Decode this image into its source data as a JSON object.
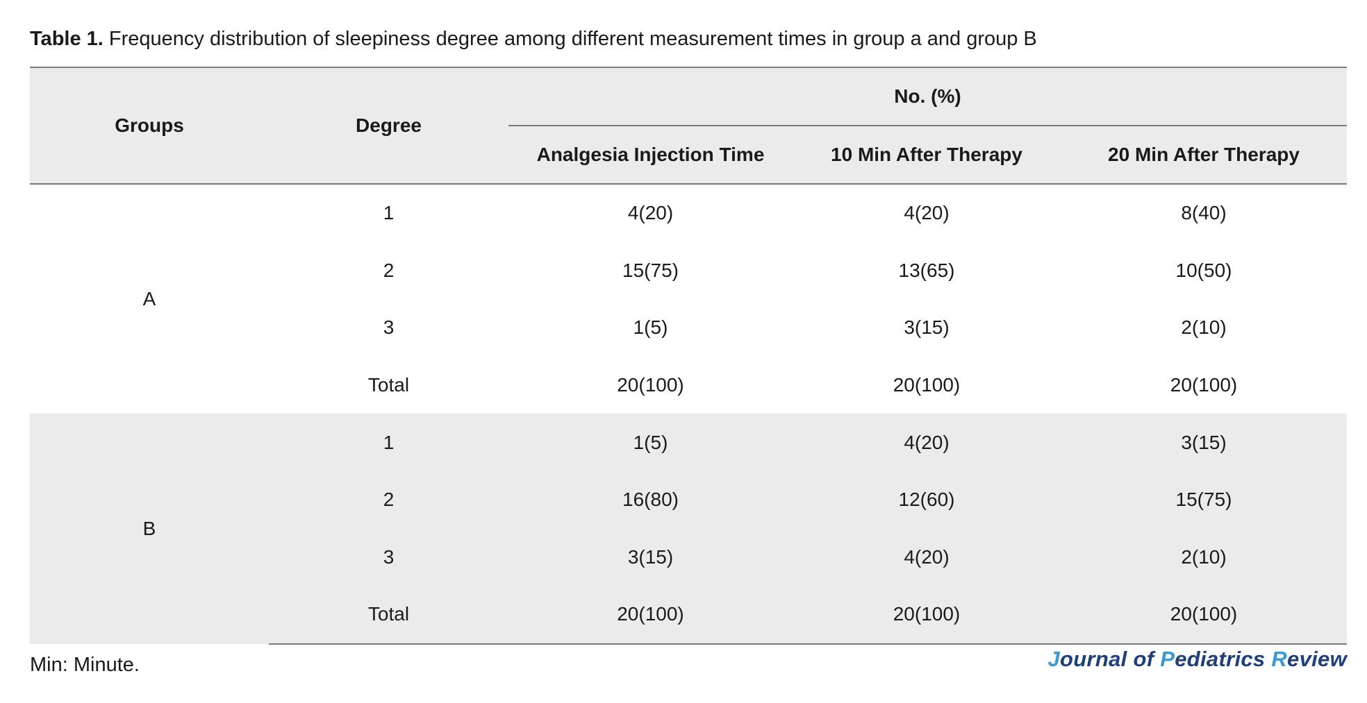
{
  "caption": {
    "label": "Table 1.",
    "text": "Frequency distribution of sleepiness degree among different measurement times in group a and group B"
  },
  "header": {
    "groups": "Groups",
    "degree": "Degree",
    "span": "No. (%)",
    "columns": [
      "Analgesia Injection Time",
      "10 Min After Therapy",
      "20 Min After Therapy"
    ]
  },
  "groups": [
    {
      "name": "A",
      "rows": [
        {
          "degree": "1",
          "values": [
            "4(20)",
            "4(20)",
            "8(40)"
          ]
        },
        {
          "degree": "2",
          "values": [
            "15(75)",
            "13(65)",
            "10(50)"
          ]
        },
        {
          "degree": "3",
          "values": [
            "1(5)",
            "3(15)",
            "2(10)"
          ]
        },
        {
          "degree": "Total",
          "values": [
            "20(100)",
            "20(100)",
            "20(100)"
          ]
        }
      ]
    },
    {
      "name": "B",
      "rows": [
        {
          "degree": "1",
          "values": [
            "1(5)",
            "4(20)",
            "3(15)"
          ]
        },
        {
          "degree": "2",
          "values": [
            "16(80)",
            "12(60)",
            "15(75)"
          ]
        },
        {
          "degree": "3",
          "values": [
            "3(15)",
            "4(20)",
            "2(10)"
          ]
        },
        {
          "degree": "Total",
          "values": [
            "20(100)",
            "20(100)",
            "20(100)"
          ]
        }
      ]
    }
  ],
  "footnote": "Min: Minute.",
  "journal": {
    "parts": [
      {
        "text": "J",
        "accent": true
      },
      {
        "text": "ournal of ",
        "accent": false
      },
      {
        "text": "P",
        "accent": true
      },
      {
        "text": "ediatrics ",
        "accent": false
      },
      {
        "text": "R",
        "accent": true
      },
      {
        "text": "eview",
        "accent": false
      }
    ]
  },
  "colors": {
    "header_bg": "#ebebeb",
    "rule": "#7a7a7a",
    "journal_dark": "#1d3f80",
    "journal_accent": "#3a9ad9"
  }
}
